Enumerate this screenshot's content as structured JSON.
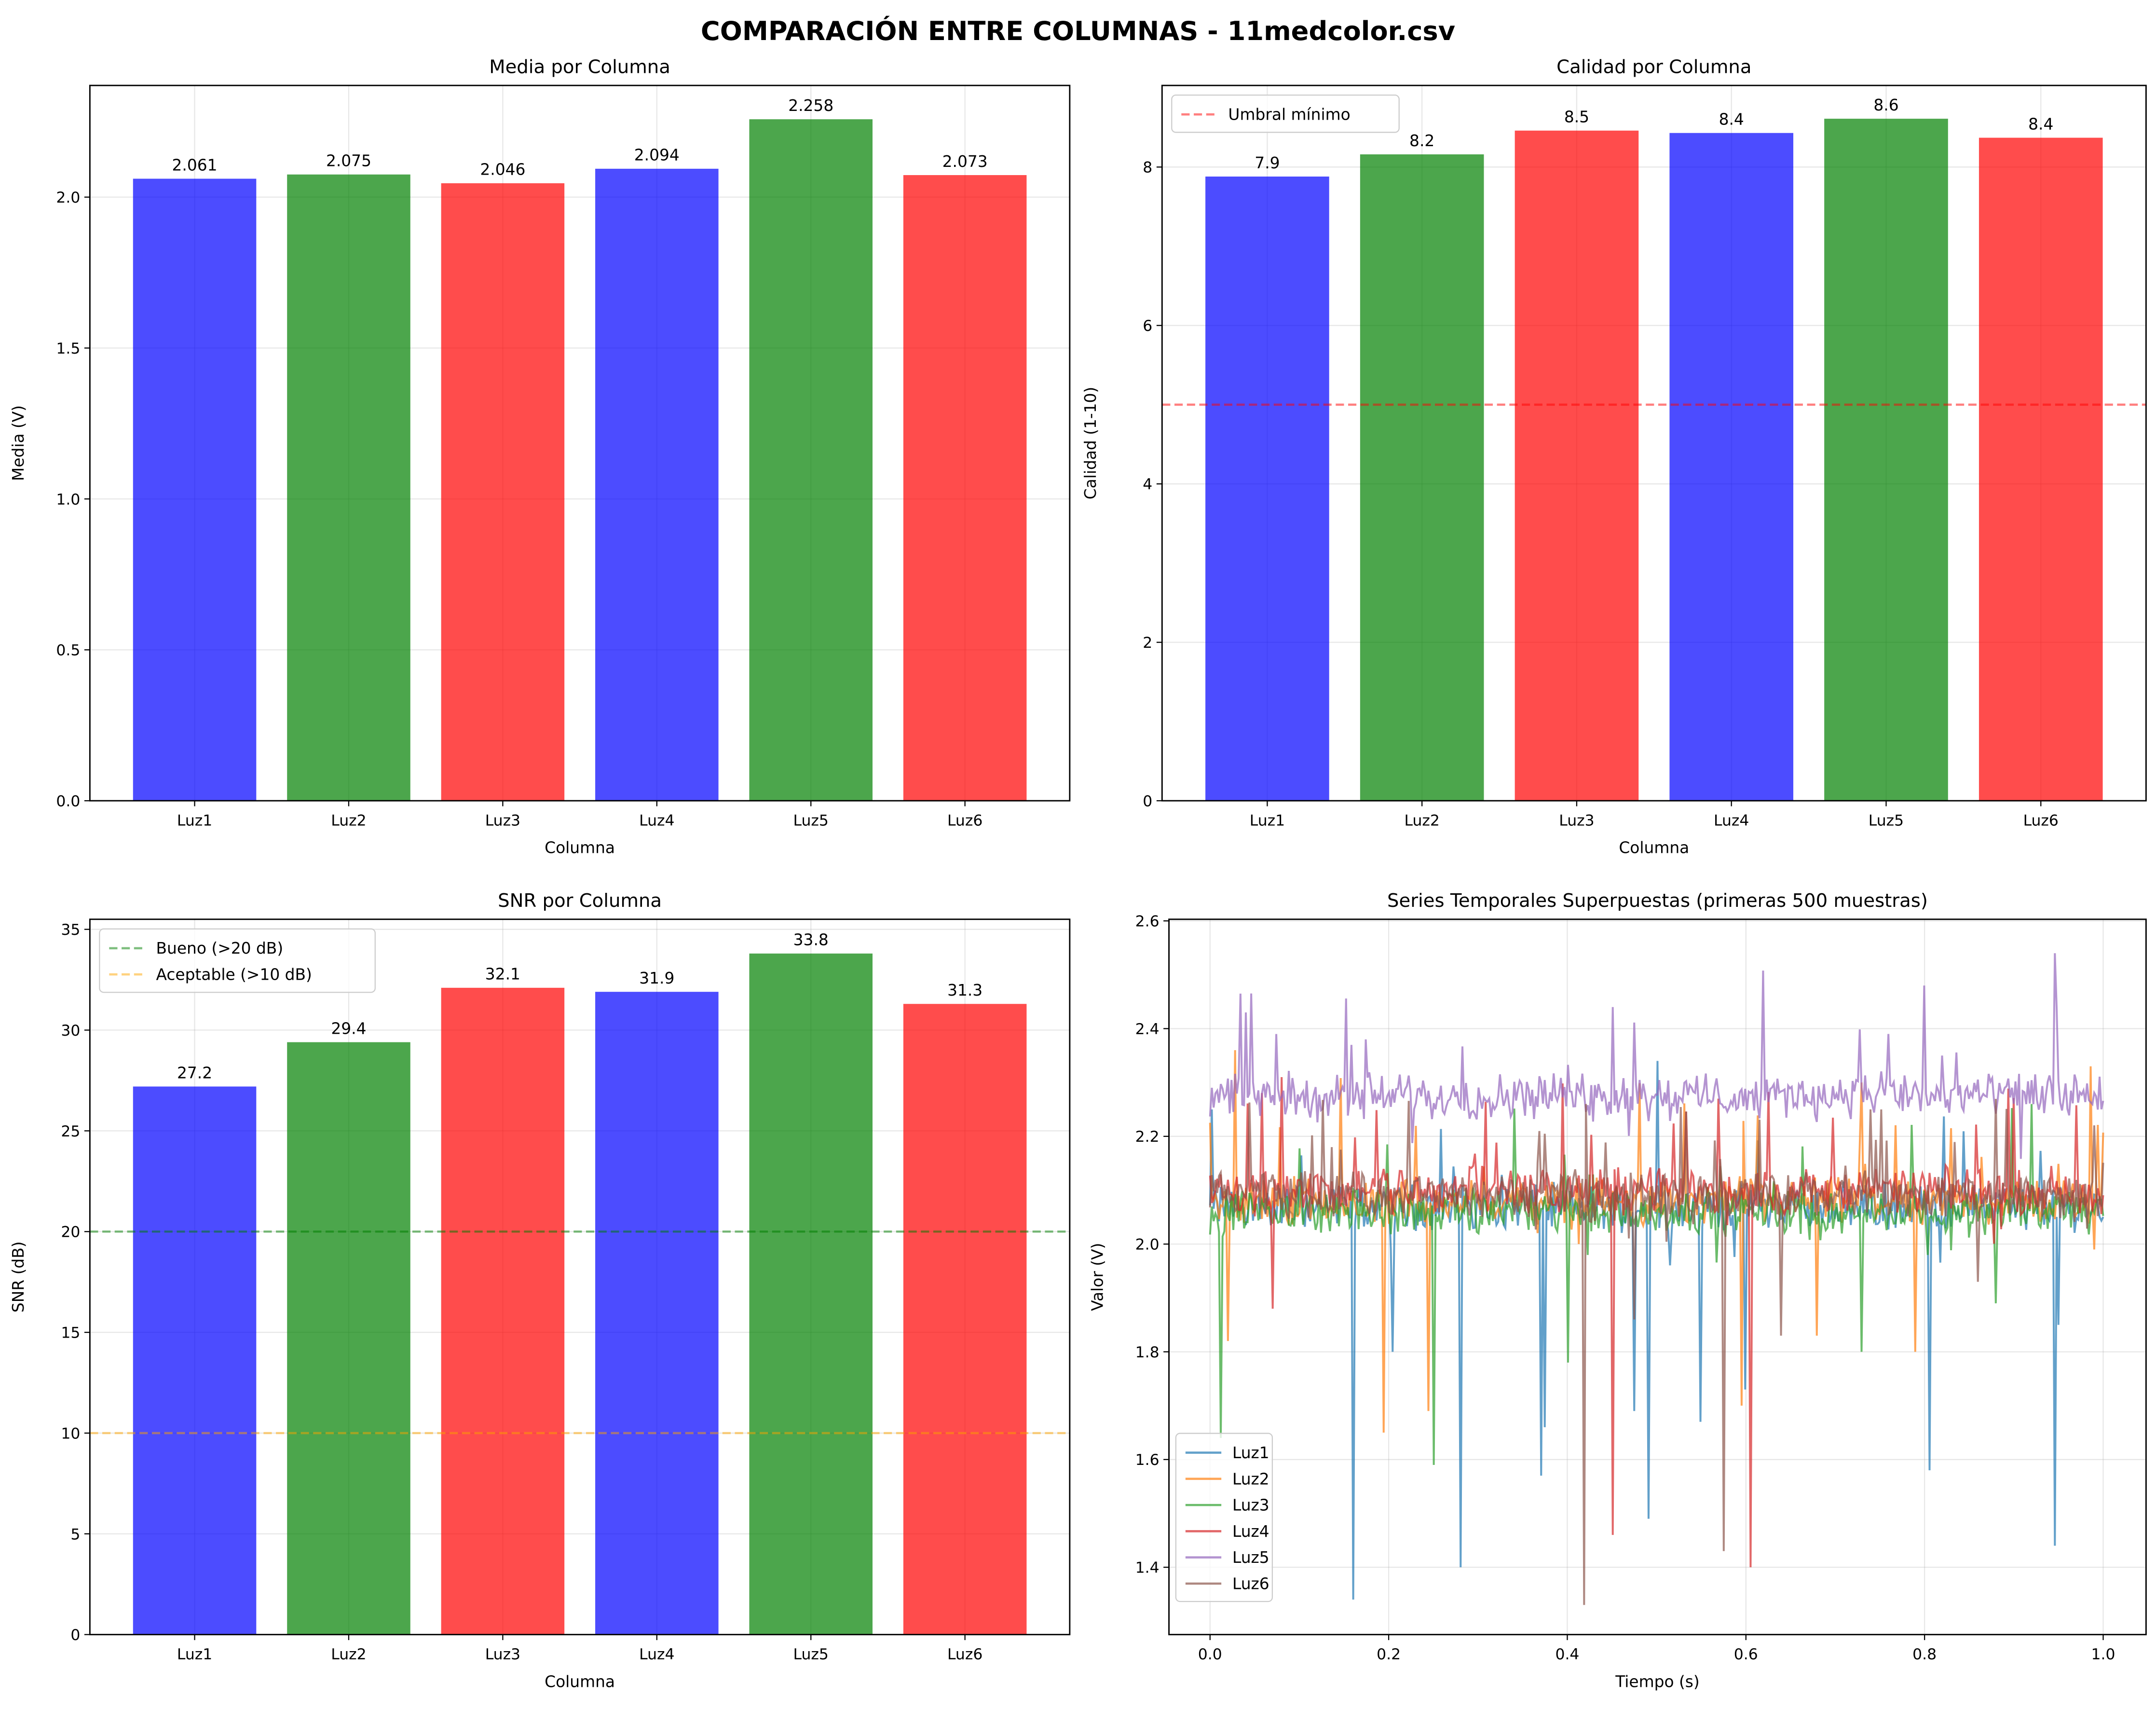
{
  "suptitle": "COMPARACIÓN ENTRE COLUMNAS - 11medcolor.csv",
  "colors": {
    "blue": "#0000ff",
    "green": "#008000",
    "red": "#ff0000",
    "bar_alpha": 0.7
  },
  "chart_data": [
    {
      "type": "bar",
      "title": "Media por Columna",
      "xlabel": "Columna",
      "ylabel": "Media (V)",
      "categories": [
        "Luz1",
        "Luz2",
        "Luz3",
        "Luz4",
        "Luz5",
        "Luz6"
      ],
      "values": [
        2.061,
        2.075,
        2.046,
        2.094,
        2.258,
        2.073
      ],
      "data_labels": [
        "2.061",
        "2.075",
        "2.046",
        "2.094",
        "2.258",
        "2.073"
      ],
      "bar_colors": [
        "#0000ff",
        "#008000",
        "#ff0000",
        "#0000ff",
        "#008000",
        "#ff0000"
      ],
      "ylim": [
        0,
        2.37
      ],
      "yticks": [
        0.0,
        0.5,
        1.0,
        1.5,
        2.0
      ],
      "ytick_labels": [
        "0.0",
        "0.5",
        "1.0",
        "1.5",
        "2.0"
      ],
      "grid": true,
      "hlines": []
    },
    {
      "type": "bar",
      "title": "Calidad por Columna",
      "xlabel": "Columna",
      "ylabel": "Calidad (1-10)",
      "categories": [
        "Luz1",
        "Luz2",
        "Luz3",
        "Luz4",
        "Luz5",
        "Luz6"
      ],
      "values": [
        7.88,
        8.16,
        8.46,
        8.43,
        8.61,
        8.37
      ],
      "data_labels": [
        "7.9",
        "8.2",
        "8.5",
        "8.4",
        "8.6",
        "8.4"
      ],
      "bar_colors": [
        "#0000ff",
        "#008000",
        "#ff0000",
        "#0000ff",
        "#008000",
        "#ff0000"
      ],
      "ylim": [
        0,
        9.03
      ],
      "yticks": [
        0,
        2,
        4,
        6,
        8
      ],
      "ytick_labels": [
        "0",
        "2",
        "4",
        "6",
        "8"
      ],
      "grid": true,
      "hlines": [
        {
          "y": 5,
          "color": "#ff0000",
          "label": "Umbral mínimo"
        }
      ],
      "legend": "top-left"
    },
    {
      "type": "bar",
      "title": "SNR por Columna",
      "xlabel": "Columna",
      "ylabel": "SNR (dB)",
      "categories": [
        "Luz1",
        "Luz2",
        "Luz3",
        "Luz4",
        "Luz5",
        "Luz6"
      ],
      "values": [
        27.2,
        29.4,
        32.1,
        31.9,
        33.8,
        31.3
      ],
      "data_labels": [
        "27.2",
        "29.4",
        "32.1",
        "31.9",
        "33.8",
        "31.3"
      ],
      "bar_colors": [
        "#0000ff",
        "#008000",
        "#ff0000",
        "#0000ff",
        "#008000",
        "#ff0000"
      ],
      "ylim": [
        0,
        35.5
      ],
      "yticks": [
        0,
        5,
        10,
        15,
        20,
        25,
        30,
        35
      ],
      "ytick_labels": [
        "0",
        "5",
        "10",
        "15",
        "20",
        "25",
        "30",
        "35"
      ],
      "grid": true,
      "hlines": [
        {
          "y": 20,
          "color": "#008000",
          "label": "Bueno (>20 dB)"
        },
        {
          "y": 10,
          "color": "#ffa500",
          "label": "Aceptable (>10 dB)"
        }
      ],
      "legend": "top-left"
    },
    {
      "type": "line",
      "title": "Series Temporales Superpuestas (primeras 500 muestras)",
      "xlabel": "Tiempo (s)",
      "ylabel": "Valor (V)",
      "samples": 500,
      "xlim": [
        -0.046,
        1.048
      ],
      "ylim": [
        1.275,
        2.603
      ],
      "xticks": [
        0.0,
        0.2,
        0.4,
        0.6,
        0.8,
        1.0
      ],
      "xtick_labels": [
        "0.0",
        "0.2",
        "0.4",
        "0.6",
        "0.8",
        "1.0"
      ],
      "yticks": [
        1.4,
        1.6,
        1.8,
        2.0,
        2.2,
        2.4,
        2.6
      ],
      "ytick_labels": [
        "1.4",
        "1.6",
        "1.8",
        "2.0",
        "2.2",
        "2.4",
        "2.6"
      ],
      "grid": true,
      "legend": "bottom-left",
      "series": [
        {
          "name": "Luz1",
          "color": "#1f77b4",
          "level": 2.07,
          "spikes": [
            [
              0.003,
              2.25
            ],
            [
              0.16,
              1.34
            ],
            [
              0.205,
              1.8
            ],
            [
              0.28,
              1.4
            ],
            [
              0.37,
              1.57
            ],
            [
              0.375,
              1.66
            ],
            [
              0.475,
              1.69
            ],
            [
              0.49,
              1.49
            ],
            [
              0.5,
              2.34
            ],
            [
              0.55,
              1.67
            ],
            [
              0.6,
              1.73
            ],
            [
              0.805,
              1.58
            ],
            [
              0.945,
              1.44
            ],
            [
              0.95,
              1.85
            ]
          ]
        },
        {
          "name": "Luz2",
          "color": "#ff7f0e",
          "level": 2.08,
          "spikes": [
            [
              0.02,
              1.82
            ],
            [
              0.028,
              2.36
            ],
            [
              0.195,
              1.65
            ],
            [
              0.245,
              1.69
            ],
            [
              0.595,
              1.7
            ],
            [
              0.68,
              1.83
            ],
            [
              0.73,
              2.3
            ],
            [
              0.79,
              1.8
            ],
            [
              0.985,
              2.33
            ],
            [
              0.99,
              1.99
            ]
          ]
        },
        {
          "name": "Luz3",
          "color": "#2ca02c",
          "level": 2.06,
          "spikes": [
            [
              0.012,
              1.64
            ],
            [
              0.25,
              1.59
            ],
            [
              0.4,
              1.78
            ],
            [
              0.73,
              1.8
            ],
            [
              0.88,
              1.89
            ],
            [
              0.92,
              2.26
            ]
          ]
        },
        {
          "name": "Luz4",
          "color": "#d62728",
          "level": 2.1,
          "spikes": [
            [
              0.07,
              1.88
            ],
            [
              0.08,
              2.31
            ],
            [
              0.45,
              1.46
            ],
            [
              0.605,
              1.4
            ],
            [
              0.57,
              2.27
            ]
          ]
        },
        {
          "name": "Luz5",
          "color": "#9467bd",
          "level": 2.275,
          "spikes": [
            [
              0.04,
              2.43
            ],
            [
              0.075,
              2.39
            ],
            [
              0.175,
              2.38
            ],
            [
              0.45,
              2.44
            ],
            [
              0.76,
              2.39
            ],
            [
              0.8,
              2.48
            ],
            [
              0.945,
              2.54
            ],
            [
              0.82,
              2.35
            ]
          ]
        },
        {
          "name": "Luz6",
          "color": "#8c564b",
          "level": 2.09,
          "spikes": [
            [
              0.418,
              1.33
            ],
            [
              0.42,
              2.26
            ],
            [
              0.475,
              1.86
            ],
            [
              0.575,
              1.43
            ],
            [
              0.64,
              1.83
            ],
            [
              0.74,
              2.25
            ],
            [
              0.86,
              1.93
            ]
          ]
        }
      ]
    }
  ]
}
